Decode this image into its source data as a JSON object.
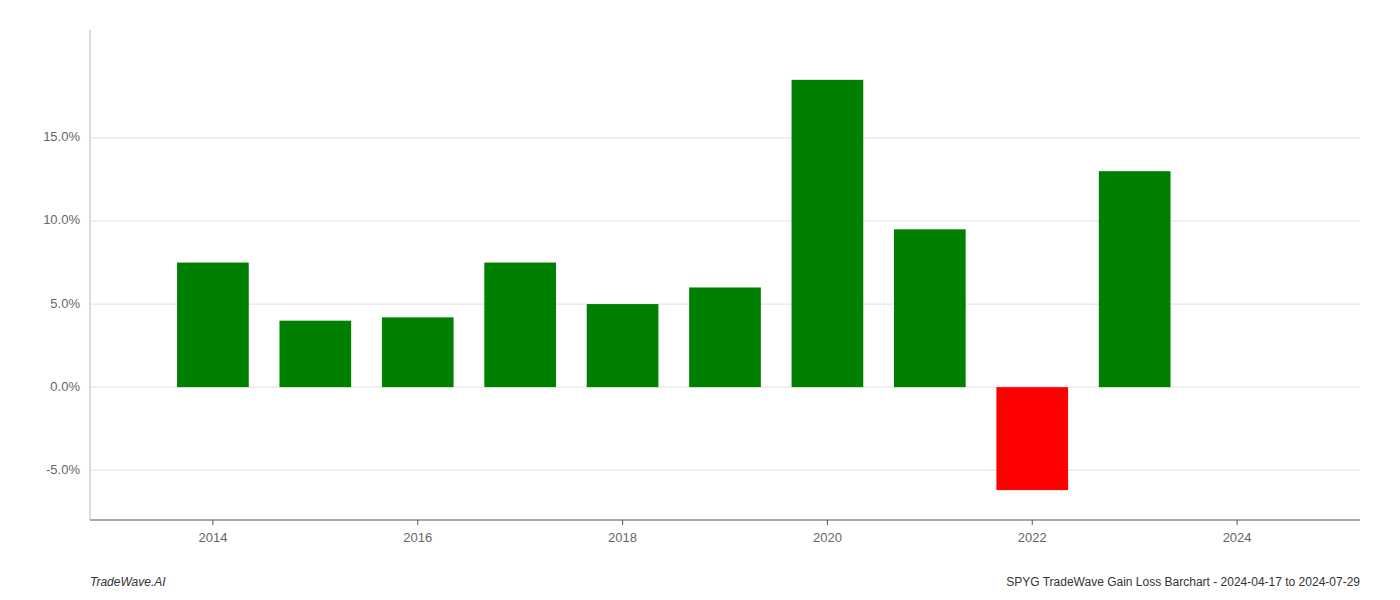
{
  "chart_data": {
    "type": "bar",
    "x": [
      2014,
      2015,
      2016,
      2017,
      2018,
      2019,
      2020,
      2021,
      2022,
      2023
    ],
    "values": [
      0.075,
      0.04,
      0.042,
      0.075,
      0.05,
      0.06,
      0.185,
      0.095,
      -0.062,
      0.13
    ],
    "colors": [
      "#008000",
      "#008000",
      "#008000",
      "#008000",
      "#008000",
      "#008000",
      "#008000",
      "#008000",
      "#ff0000",
      "#008000"
    ],
    "xlim": [
      2012.8,
      2025.2
    ],
    "xticks": [
      2014,
      2016,
      2018,
      2020,
      2022,
      2024
    ],
    "ylim": [
      -0.08,
      0.215
    ],
    "yticks": [
      {
        "value": -0.05,
        "label": "-5.0%"
      },
      {
        "value": 0.0,
        "label": "0.0%"
      },
      {
        "value": 0.05,
        "label": "5.0%"
      },
      {
        "value": 0.1,
        "label": "10.0%"
      },
      {
        "value": 0.15,
        "label": "15.0%"
      }
    ],
    "grid": true,
    "annotations": [
      "TradeWave.AI",
      "SPYG TradeWave Gain Loss Barchart - 2024-04-17 to 2024-07-29"
    ]
  }
}
